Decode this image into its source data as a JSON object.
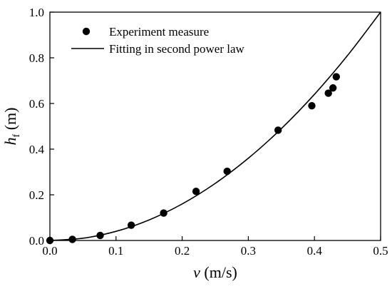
{
  "chart_data": {
    "type": "scatter",
    "title": "",
    "xlabel_var": "v",
    "xlabel_unit": " (m/s)",
    "ylabel_var": "h",
    "ylabel_sub": "f",
    "ylabel_unit": " (m)",
    "xlim": [
      0,
      0.5
    ],
    "ylim": [
      0,
      1.0
    ],
    "xticks": [
      {
        "value": 0.0,
        "label": "0.0"
      },
      {
        "value": 0.1,
        "label": "0.1"
      },
      {
        "value": 0.2,
        "label": "0.2"
      },
      {
        "value": 0.3,
        "label": "0.3"
      },
      {
        "value": 0.4,
        "label": "0.4"
      },
      {
        "value": 0.5,
        "label": "0.5"
      }
    ],
    "yticks": [
      {
        "value": 0.0,
        "label": "0.0"
      },
      {
        "value": 0.2,
        "label": "0.2"
      },
      {
        "value": 0.4,
        "label": "0.4"
      },
      {
        "value": 0.6,
        "label": "0.6"
      },
      {
        "value": 0.8,
        "label": "0.8"
      },
      {
        "value": 1.0,
        "label": "1.0"
      }
    ],
    "grid": false,
    "legend_position": "top-left",
    "series": [
      {
        "name": "Experiment  measure",
        "kind": "points",
        "color": "#000000",
        "points": [
          {
            "x": 0.0,
            "y": 0.0
          },
          {
            "x": 0.034,
            "y": 0.005
          },
          {
            "x": 0.076,
            "y": 0.022
          },
          {
            "x": 0.123,
            "y": 0.067
          },
          {
            "x": 0.172,
            "y": 0.12
          },
          {
            "x": 0.221,
            "y": 0.215
          },
          {
            "x": 0.268,
            "y": 0.303
          },
          {
            "x": 0.345,
            "y": 0.483
          },
          {
            "x": 0.396,
            "y": 0.59
          },
          {
            "x": 0.421,
            "y": 0.645
          },
          {
            "x": 0.428,
            "y": 0.668
          },
          {
            "x": 0.433,
            "y": 0.717
          }
        ]
      },
      {
        "name": "Fitting in second power law",
        "kind": "curve",
        "color": "#000000",
        "points": [
          {
            "x": 0.0,
            "y": 0.0
          },
          {
            "x": 0.05,
            "y": 0.01
          },
          {
            "x": 0.1,
            "y": 0.04
          },
          {
            "x": 0.15,
            "y": 0.09
          },
          {
            "x": 0.2,
            "y": 0.16
          },
          {
            "x": 0.25,
            "y": 0.25
          },
          {
            "x": 0.3,
            "y": 0.36
          },
          {
            "x": 0.35,
            "y": 0.49
          },
          {
            "x": 0.4,
            "y": 0.64
          },
          {
            "x": 0.45,
            "y": 0.81
          },
          {
            "x": 0.5,
            "y": 1.0
          }
        ]
      }
    ]
  }
}
